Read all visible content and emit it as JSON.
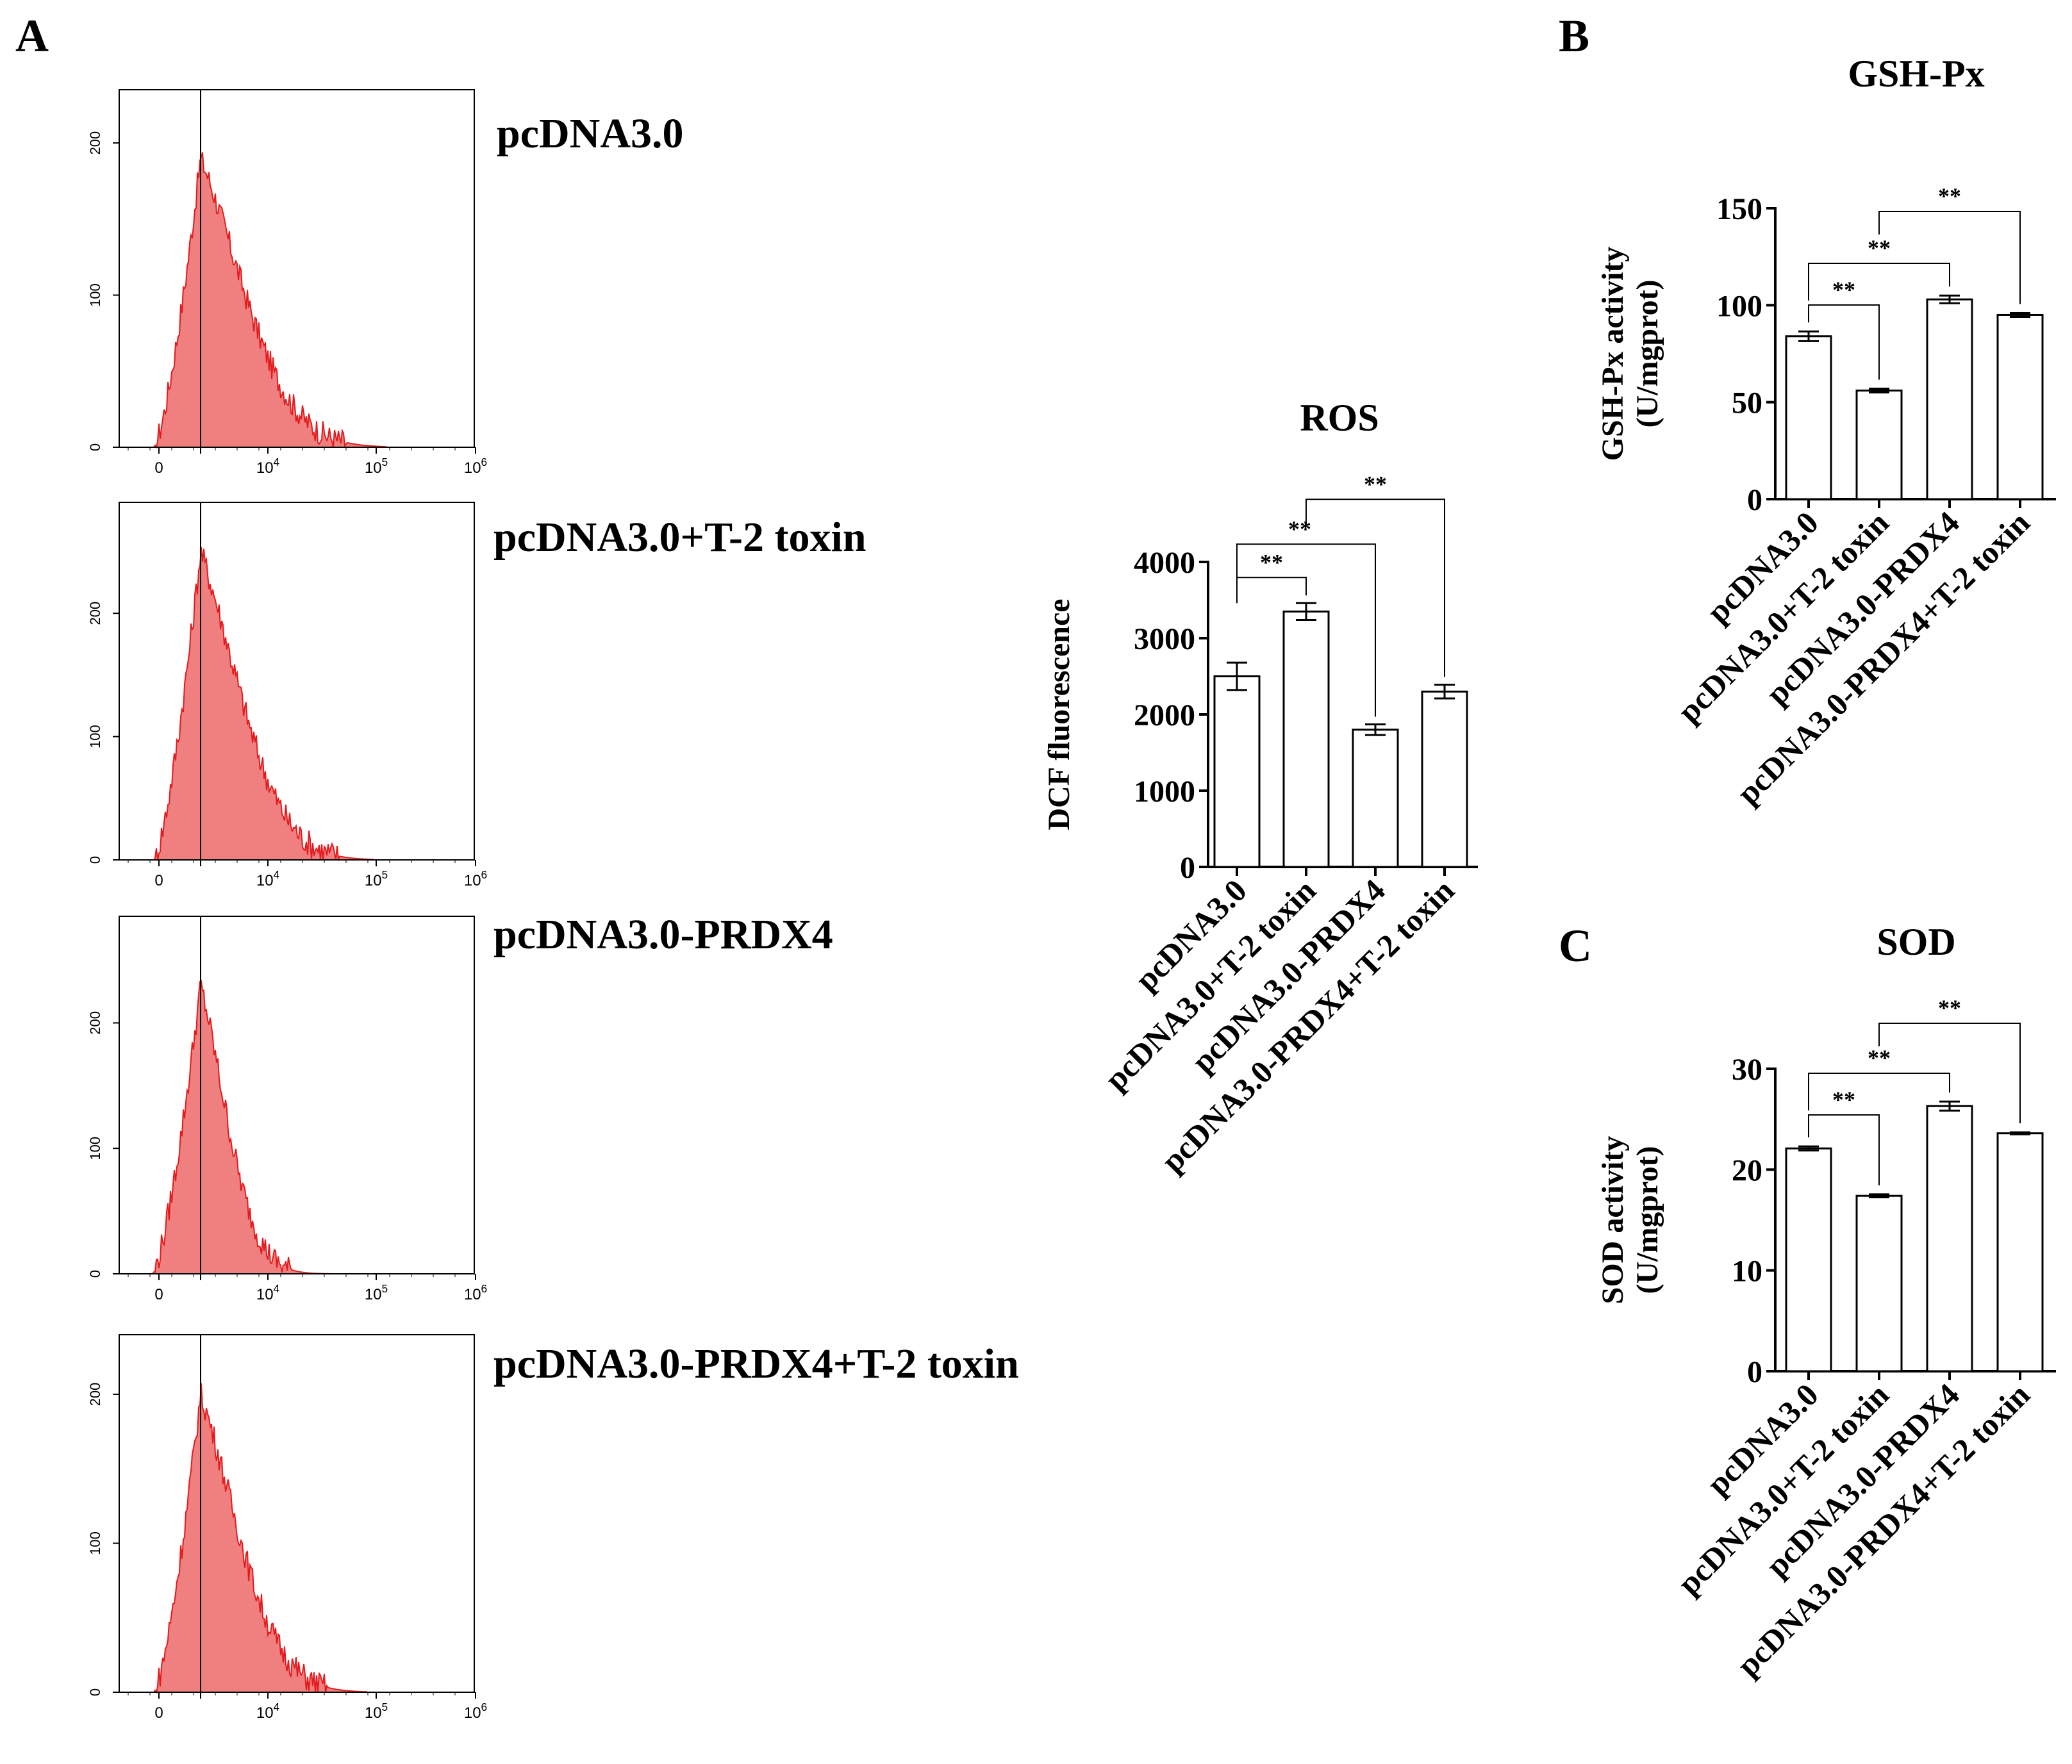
{
  "panels": {
    "A": "A",
    "B": "B",
    "C": "C"
  },
  "hist_axis": {
    "x_ticks": [
      "0",
      "10^4",
      "10^5",
      "10^6"
    ],
    "y_ticks": [
      "0",
      "100",
      "200"
    ]
  },
  "chart_data": [
    {
      "type": "area",
      "title": "pcDNA3.0",
      "xscale": "log (flow cytometry fluorescence)",
      "x_ticks": [
        "0",
        "10^4",
        "10^5",
        "10^6"
      ],
      "ylim": [
        0,
        235
      ],
      "y_ticks": [
        0,
        100,
        200
      ],
      "peak_count": 190,
      "marker_line": "vertical line at peak"
    },
    {
      "type": "area",
      "title": "pcDNA3.0+T-2 toxin",
      "xscale": "log (flow cytometry fluorescence)",
      "x_ticks": [
        "0",
        "10^4",
        "10^5",
        "10^6"
      ],
      "ylim": [
        0,
        290
      ],
      "y_ticks": [
        0,
        100,
        200
      ],
      "peak_count": 250,
      "marker_line": "vertical line at peak"
    },
    {
      "type": "area",
      "title": "pcDNA3.0-PRDX4",
      "xscale": "log (flow cytometry fluorescence)",
      "x_ticks": [
        "0",
        "10^4",
        "10^5",
        "10^6"
      ],
      "ylim": [
        0,
        285
      ],
      "y_ticks": [
        0,
        100,
        200
      ],
      "peak_count": 230,
      "marker_line": "vertical line at peak"
    },
    {
      "type": "area",
      "title": "pcDNA3.0-PRDX4+T-2 toxin",
      "xscale": "log (flow cytometry fluorescence)",
      "x_ticks": [
        "0",
        "10^4",
        "10^5",
        "10^6"
      ],
      "ylim": [
        0,
        240
      ],
      "y_ticks": [
        0,
        100,
        200
      ],
      "peak_count": 200,
      "marker_line": "vertical line at peak"
    },
    {
      "type": "bar",
      "title": "ROS",
      "ylabel": "DCF fluorescence",
      "ylim": [
        0,
        4000
      ],
      "y_ticks": [
        0,
        1000,
        2000,
        3000,
        4000
      ],
      "categories": [
        "pcDNA3.0",
        "pcDNA3.0+T-2 toxin",
        "pcDNA3.0-PRDX4",
        "pcDNA3.0-PRDX4+T-2 toxin"
      ],
      "values": [
        2500,
        3350,
        1800,
        2300
      ],
      "errors": [
        180,
        110,
        70,
        90
      ],
      "significance": [
        {
          "from": 0,
          "to": 1,
          "label": "**"
        },
        {
          "from": 0,
          "to": 2,
          "label": "**"
        },
        {
          "from": 1,
          "to": 3,
          "label": "**"
        }
      ]
    },
    {
      "type": "bar",
      "title": "GSH-Px",
      "ylabel": "GSH-Px activity",
      "ylabel2": "(U/mgprot)",
      "ylim": [
        0,
        150
      ],
      "y_ticks": [
        0,
        50,
        100,
        150
      ],
      "categories": [
        "pcDNA3.0",
        "pcDNA3.0+T-2 toxin",
        "pcDNA3.0-PRDX4",
        "pcDNA3.0-PRDX4+T-2 toxin"
      ],
      "values": [
        84,
        56,
        103,
        95
      ],
      "errors": [
        2.5,
        1,
        2,
        1
      ],
      "significance": [
        {
          "from": 0,
          "to": 1,
          "label": "**"
        },
        {
          "from": 0,
          "to": 2,
          "label": "**"
        },
        {
          "from": 1,
          "to": 3,
          "label": "**"
        }
      ]
    },
    {
      "type": "bar",
      "title": "SOD",
      "ylabel": "SOD activity",
      "ylabel2": "(U/mgprot)",
      "ylim": [
        0,
        30
      ],
      "y_ticks": [
        0,
        10,
        20,
        30
      ],
      "categories": [
        "pcDNA3.0",
        "pcDNA3.0+T-2 toxin",
        "pcDNA3.0-PRDX4",
        "pcDNA3.0-PRDX4+T-2 toxin"
      ],
      "values": [
        22.1,
        17.4,
        26.3,
        23.6
      ],
      "errors": [
        0.2,
        0.15,
        0.45,
        0.1
      ],
      "significance": [
        {
          "from": 0,
          "to": 1,
          "label": "**"
        },
        {
          "from": 0,
          "to": 2,
          "label": "**"
        },
        {
          "from": 1,
          "to": 3,
          "label": "**"
        }
      ]
    }
  ],
  "colors": {
    "hist_fill": "#f08080",
    "hist_edge": "#e41a1c",
    "axis": "#000000",
    "bar_fill": "#ffffff"
  }
}
